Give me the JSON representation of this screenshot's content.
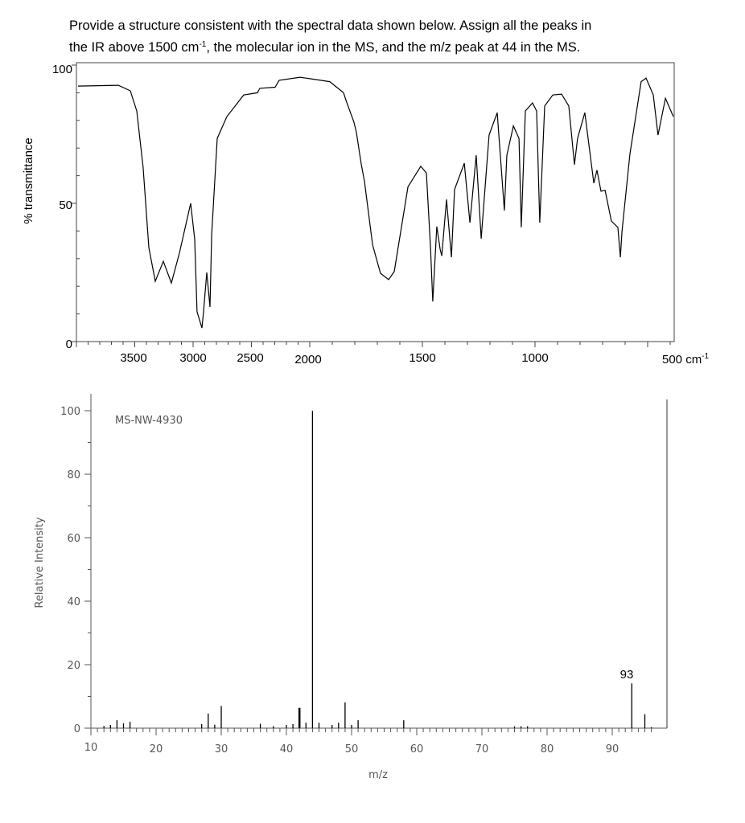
{
  "question": {
    "line1": "Provide a structure consistent with the spectral data shown below.  Assign all the peaks in",
    "line2_a": "the IR above 1500 cm",
    "line2_sup": "-1",
    "line2_b": ", the molecular ion in the MS, and the m/z peak at 44 in the MS."
  },
  "chart_data": [
    {
      "type": "line",
      "ylabel": "% transmittance",
      "y_ticks": [
        "100",
        "50",
        "0"
      ],
      "x_ticks": [
        "3500",
        "3000",
        "2500",
        "2000",
        "1500",
        "1000",
        "500 cm"
      ],
      "x_unit_sup": "-1",
      "xlim": [
        4000,
        400
      ],
      "ylim": [
        0,
        100
      ],
      "x_scale_note": "scale doubles below 2000",
      "grid": false,
      "color": "#000000",
      "points": [
        [
          3986,
          92.4
        ],
        [
          3641,
          92.7
        ],
        [
          3538,
          90.7
        ],
        [
          3483,
          83.4
        ],
        [
          3428,
          63
        ],
        [
          3379,
          34
        ],
        [
          3324,
          21.8
        ],
        [
          3255,
          29
        ],
        [
          3186,
          21.2
        ],
        [
          3117,
          32
        ],
        [
          3021,
          50
        ],
        [
          2986,
          37
        ],
        [
          2966,
          10.8
        ],
        [
          2924,
          4.9
        ],
        [
          2910,
          10.8
        ],
        [
          2883,
          25
        ],
        [
          2876,
          21.8
        ],
        [
          2855,
          12.5
        ],
        [
          2841,
          38.7
        ],
        [
          2793,
          73.5
        ],
        [
          2710,
          81.4
        ],
        [
          2566,
          89.2
        ],
        [
          2448,
          90
        ],
        [
          2428,
          91.6
        ],
        [
          2297,
          92
        ],
        [
          2262,
          94.5
        ],
        [
          2083,
          95.6
        ],
        [
          1911,
          94
        ],
        [
          1850,
          90
        ],
        [
          1839,
          87.2
        ],
        [
          1804,
          79.4
        ],
        [
          1793,
          75.6
        ],
        [
          1771,
          64
        ],
        [
          1757,
          58
        ],
        [
          1721,
          35
        ],
        [
          1686,
          24.7
        ],
        [
          1650,
          22.4
        ],
        [
          1625,
          25.3
        ],
        [
          1564,
          56
        ],
        [
          1507,
          63.4
        ],
        [
          1482,
          61
        ],
        [
          1464,
          34
        ],
        [
          1454,
          14.5
        ],
        [
          1436,
          41.6
        ],
        [
          1421,
          33.4
        ],
        [
          1414,
          31
        ],
        [
          1393,
          51.4
        ],
        [
          1371,
          30.5
        ],
        [
          1357,
          55
        ],
        [
          1314,
          64.5
        ],
        [
          1289,
          43
        ],
        [
          1261,
          67.4
        ],
        [
          1239,
          37.2
        ],
        [
          1204,
          74.7
        ],
        [
          1168,
          82.8
        ],
        [
          1136,
          47.4
        ],
        [
          1125,
          67.4
        ],
        [
          1096,
          78
        ],
        [
          1071,
          73.5
        ],
        [
          1061,
          41.3
        ],
        [
          1043,
          83.4
        ],
        [
          1011,
          86.3
        ],
        [
          993,
          83.4
        ],
        [
          979,
          43
        ],
        [
          957,
          85.2
        ],
        [
          921,
          89.2
        ],
        [
          882,
          89.5
        ],
        [
          850,
          85.2
        ],
        [
          825,
          64
        ],
        [
          811,
          73.5
        ],
        [
          779,
          82.8
        ],
        [
          739,
          57.3
        ],
        [
          725,
          62
        ],
        [
          707,
          54.4
        ],
        [
          689,
          54.7
        ],
        [
          661,
          43.6
        ],
        [
          632,
          41.3
        ],
        [
          621,
          30.5
        ],
        [
          614,
          39.8
        ],
        [
          579,
          67.7
        ],
        [
          529,
          94
        ],
        [
          507,
          95.3
        ],
        [
          475,
          89.2
        ],
        [
          454,
          74.7
        ],
        [
          421,
          88
        ],
        [
          386,
          81.4
        ]
      ]
    },
    {
      "type": "bar",
      "code": "MS-NW-4930",
      "xlabel": "m/z",
      "ylabel": "Relative Intensity",
      "x_ticks": [
        "10",
        "20",
        "30",
        "40",
        "50",
        "60",
        "70",
        "80",
        "90"
      ],
      "y_ticks": [
        "0",
        "20",
        "40",
        "60",
        "80",
        "100"
      ],
      "xlim": [
        10,
        98
      ],
      "ylim": [
        0,
        100
      ],
      "annotation": "93",
      "color": "#000000",
      "peaks": [
        {
          "mz": 12,
          "intensity": 0.7
        },
        {
          "mz": 13,
          "intensity": 1
        },
        {
          "mz": 14,
          "intensity": 2.5
        },
        {
          "mz": 15,
          "intensity": 1.5
        },
        {
          "mz": 16,
          "intensity": 2
        },
        {
          "mz": 27,
          "intensity": 1.3
        },
        {
          "mz": 28,
          "intensity": 4.6
        },
        {
          "mz": 29,
          "intensity": 1.1
        },
        {
          "mz": 30,
          "intensity": 7
        },
        {
          "mz": 36,
          "intensity": 1.4
        },
        {
          "mz": 38,
          "intensity": 0.6
        },
        {
          "mz": 40,
          "intensity": 1
        },
        {
          "mz": 41,
          "intensity": 1.3
        },
        {
          "mz": 42,
          "intensity": 6.4
        },
        {
          "mz": 43,
          "intensity": 1.7
        },
        {
          "mz": 44,
          "intensity": 100
        },
        {
          "mz": 45,
          "intensity": 1.7
        },
        {
          "mz": 47,
          "intensity": 1
        },
        {
          "mz": 48,
          "intensity": 1.7
        },
        {
          "mz": 49,
          "intensity": 8.1
        },
        {
          "mz": 50,
          "intensity": 1
        },
        {
          "mz": 51,
          "intensity": 2.5
        },
        {
          "mz": 58,
          "intensity": 2.5
        },
        {
          "mz": 75,
          "intensity": 0.6
        },
        {
          "mz": 76,
          "intensity": 0.6
        },
        {
          "mz": 77,
          "intensity": 0.6
        },
        {
          "mz": 93,
          "intensity": 14.1
        },
        {
          "mz": 95,
          "intensity": 4.4
        },
        {
          "mz": 96,
          "intensity": 0.3
        }
      ]
    }
  ]
}
